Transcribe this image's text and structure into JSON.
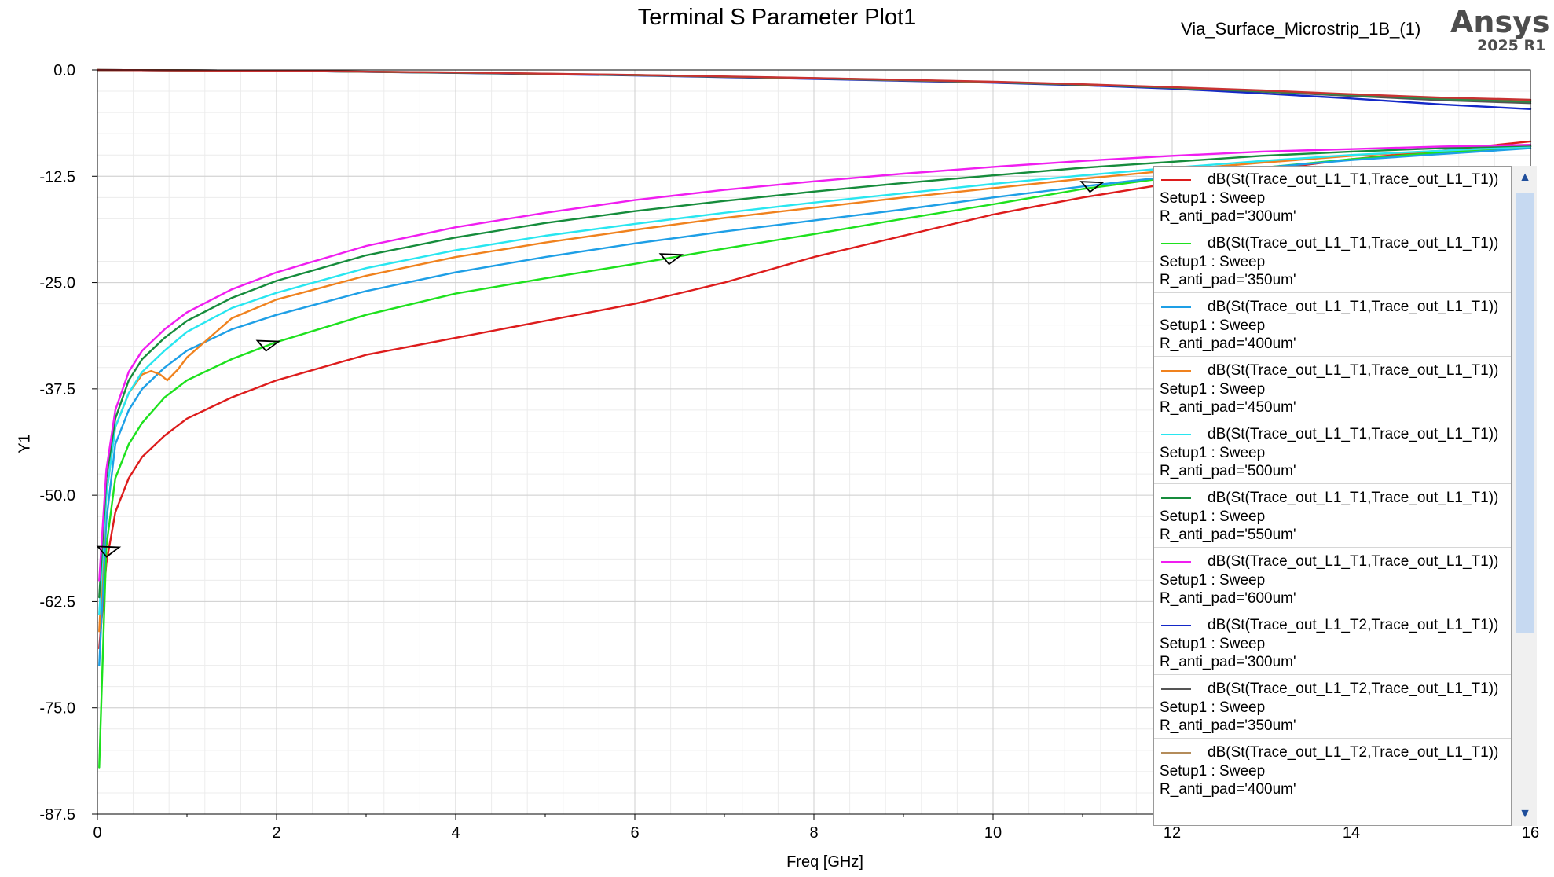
{
  "header": {
    "title": "Terminal S Parameter Plot1",
    "design_name": "Via_Surface_Microstrip_1B_(1)",
    "brand": "Ansys",
    "version": "2025 R1"
  },
  "chart_data": {
    "type": "line",
    "title": "Terminal S Parameter Plot1",
    "xlabel": "Freq [GHz]",
    "ylabel": "Y1",
    "xlim": [
      0,
      16
    ],
    "ylim": [
      -87.5,
      0
    ],
    "x_ticks": [
      0,
      2,
      4,
      6,
      8,
      10,
      12,
      14,
      16
    ],
    "y_ticks": [
      0.0,
      -12.5,
      -25.0,
      -37.5,
      -50.0,
      -62.5,
      -75.0,
      -87.5
    ],
    "y_tick_labels": [
      "0.0",
      "-12.5",
      "-25.0",
      "-37.5",
      "-50.0",
      "-62.5",
      "-75.0",
      "-87.5"
    ],
    "grid": true,
    "legend_position": "right",
    "series": [
      {
        "name": "dB(St(Trace_out_L1_T1,Trace_out_L1_T1))",
        "setup": "Setup1 : Sweep",
        "param": "R_anti_pad='300um'",
        "color": "#dd1c1c",
        "x": [
          0.02,
          0.1,
          0.2,
          0.35,
          0.5,
          0.75,
          1,
          1.5,
          2,
          3,
          4,
          5,
          6,
          7,
          8,
          9,
          10,
          11,
          12,
          13,
          14,
          15,
          16
        ],
        "y": [
          -68,
          -58,
          -52,
          -48,
          -45.5,
          -43,
          -41,
          -38.5,
          -36.5,
          -33.5,
          -31.5,
          -29.5,
          -27.5,
          -25,
          -22,
          -19.5,
          -17,
          -15,
          -13.3,
          -11.8,
          -10.5,
          -9.5,
          -8.4
        ]
      },
      {
        "name": "dB(St(Trace_out_L1_T1,Trace_out_L1_T1))",
        "setup": "Setup1 : Sweep",
        "param": "R_anti_pad='350um'",
        "color": "#1ee11e",
        "x": [
          0.02,
          0.1,
          0.2,
          0.35,
          0.5,
          0.75,
          1,
          1.5,
          2,
          3,
          4,
          5,
          6,
          7,
          8,
          9,
          10,
          11,
          12,
          13,
          14,
          15,
          16
        ],
        "y": [
          -82,
          -56,
          -48,
          -44,
          -41.5,
          -38.5,
          -36.5,
          -34,
          -32,
          -28.8,
          -26.3,
          -24.5,
          -22.8,
          -21,
          -19.3,
          -17.5,
          -15.8,
          -14,
          -12.6,
          -11.5,
          -10.5,
          -9.7,
          -9
        ]
      },
      {
        "name": "dB(St(Trace_out_L1_T1,Trace_out_L1_T1))",
        "setup": "Setup1 : Sweep",
        "param": "R_anti_pad='400um'",
        "color": "#1e9fe6",
        "x": [
          0.02,
          0.1,
          0.2,
          0.35,
          0.5,
          0.75,
          1,
          1.5,
          2,
          3,
          4,
          5,
          6,
          7,
          8,
          9,
          10,
          11,
          12,
          13,
          14,
          15,
          16
        ],
        "y": [
          -70,
          -53,
          -44,
          -40,
          -37.5,
          -35,
          -33,
          -30.5,
          -28.8,
          -26,
          -23.8,
          -22,
          -20.4,
          -19,
          -17.7,
          -16.4,
          -15,
          -13.7,
          -12.5,
          -11.5,
          -10.6,
          -9.9,
          -9.2
        ]
      },
      {
        "name": "dB(St(Trace_out_L1_T1,Trace_out_L1_T1))",
        "setup": "Setup1 : Sweep",
        "param": "R_anti_pad='450um'",
        "color": "#f0821e",
        "x": [
          0.02,
          0.1,
          0.2,
          0.35,
          0.5,
          0.6,
          0.7,
          0.78,
          0.9,
          1,
          1.5,
          2,
          3,
          4,
          5,
          6,
          7,
          8,
          9,
          10,
          11,
          12,
          13,
          14,
          15,
          16
        ],
        "y": [
          -66,
          -50,
          -42,
          -38,
          -35.8,
          -35.4,
          -35.8,
          -36.5,
          -35.2,
          -33.8,
          -29.2,
          -27,
          -24.2,
          -22,
          -20.3,
          -18.8,
          -17.4,
          -16.2,
          -15,
          -13.9,
          -12.8,
          -11.8,
          -10.9,
          -10.1,
          -9.5,
          -9
        ]
      },
      {
        "name": "dB(St(Trace_out_L1_T1,Trace_out_L1_T1))",
        "setup": "Setup1 : Sweep",
        "param": "R_anti_pad='500um'",
        "color": "#28e6f0",
        "x": [
          0.02,
          0.1,
          0.2,
          0.35,
          0.5,
          0.75,
          1,
          1.5,
          2,
          3,
          4,
          5,
          6,
          7,
          8,
          9,
          10,
          11,
          12,
          13,
          14,
          15,
          16
        ],
        "y": [
          -64,
          -50,
          -42,
          -38,
          -35.5,
          -33,
          -30.8,
          -28,
          -26.2,
          -23.3,
          -21.2,
          -19.5,
          -18.1,
          -16.8,
          -15.6,
          -14.5,
          -13.4,
          -12.4,
          -11.5,
          -10.7,
          -10,
          -9.5,
          -9
        ]
      },
      {
        "name": "dB(St(Trace_out_L1_T1,Trace_out_L1_T1))",
        "setup": "Setup1 : Sweep",
        "param": "R_anti_pad='550um'",
        "color": "#168c3c",
        "x": [
          0.02,
          0.1,
          0.2,
          0.35,
          0.5,
          0.75,
          1,
          1.5,
          2,
          3,
          4,
          5,
          6,
          7,
          8,
          9,
          10,
          11,
          12,
          13,
          14,
          15,
          16
        ],
        "y": [
          -62,
          -48,
          -41,
          -36.5,
          -34,
          -31.5,
          -29.5,
          -26.8,
          -24.8,
          -21.8,
          -19.7,
          -18,
          -16.6,
          -15.4,
          -14.3,
          -13.3,
          -12.4,
          -11.5,
          -10.8,
          -10.1,
          -9.6,
          -9.2,
          -8.9
        ]
      },
      {
        "name": "dB(St(Trace_out_L1_T1,Trace_out_L1_T1))",
        "setup": "Setup1 : Sweep",
        "param": "R_anti_pad='600um'",
        "color": "#f01ef0",
        "x": [
          0.02,
          0.1,
          0.2,
          0.35,
          0.5,
          0.75,
          1,
          1.5,
          2,
          3,
          4,
          5,
          6,
          7,
          8,
          9,
          10,
          11,
          12,
          13,
          14,
          15,
          16
        ],
        "y": [
          -60,
          -47,
          -40,
          -35.5,
          -33,
          -30.5,
          -28.5,
          -25.8,
          -23.8,
          -20.7,
          -18.5,
          -16.8,
          -15.3,
          -14.1,
          -13.1,
          -12.2,
          -11.4,
          -10.7,
          -10.1,
          -9.6,
          -9.3,
          -9,
          -8.8
        ]
      },
      {
        "name": "dB(St(Trace_out_L1_T2,Trace_out_L1_T1))",
        "setup": "Setup1 : Sweep",
        "param": "R_anti_pad='300um'",
        "color": "#1428c8",
        "x": [
          0,
          2,
          4,
          6,
          8,
          10,
          11,
          12,
          13,
          14,
          15,
          16
        ],
        "y": [
          0,
          -0.1,
          -0.35,
          -0.65,
          -1.05,
          -1.5,
          -1.8,
          -2.2,
          -2.75,
          -3.35,
          -4.05,
          -4.6
        ]
      },
      {
        "name": "dB(St(Trace_out_L1_T2,Trace_out_L1_T1))",
        "setup": "Setup1 : Sweep",
        "param": "R_anti_pad='350um'",
        "color": "#555555",
        "x": [
          0,
          2,
          4,
          6,
          8,
          10,
          11,
          12,
          13,
          14,
          15,
          16
        ],
        "y": [
          0,
          -0.1,
          -0.33,
          -0.62,
          -1,
          -1.45,
          -1.75,
          -2.1,
          -2.55,
          -3.05,
          -3.55,
          -3.9
        ]
      },
      {
        "name": "dB(St(Trace_out_L1_T2,Trace_out_L1_T1))",
        "setup": "Setup1 : Sweep",
        "param": "R_anti_pad='400um'",
        "color": "#b48c5a",
        "x": [
          0,
          2,
          4,
          6,
          8,
          10,
          11,
          12,
          13,
          14,
          15,
          16
        ],
        "y": [
          0,
          -0.1,
          -0.3,
          -0.6,
          -0.98,
          -1.42,
          -1.7,
          -2.05,
          -2.45,
          -2.9,
          -3.3,
          -3.6
        ]
      },
      {
        "color": "#2c8c46",
        "x": [
          0,
          2,
          4,
          6,
          8,
          10,
          11,
          12,
          13,
          14,
          15,
          16
        ],
        "y": [
          0,
          -0.1,
          -0.32,
          -0.6,
          -0.97,
          -1.4,
          -1.72,
          -2.07,
          -2.5,
          -2.95,
          -3.4,
          -3.75
        ]
      },
      {
        "color": "#c83232",
        "x": [
          0,
          2,
          4,
          6,
          8,
          10,
          11,
          12,
          13,
          14,
          15,
          16
        ],
        "y": [
          0,
          -0.1,
          -0.3,
          -0.58,
          -0.95,
          -1.38,
          -1.68,
          -2.02,
          -2.4,
          -2.85,
          -3.25,
          -3.5
        ]
      }
    ],
    "markers": [
      {
        "x": 0.12,
        "y": -56.5
      },
      {
        "x": 1.9,
        "y": -32.3
      },
      {
        "x": 6.4,
        "y": -22.1
      },
      {
        "x": 11.1,
        "y": -13.6
      }
    ]
  }
}
